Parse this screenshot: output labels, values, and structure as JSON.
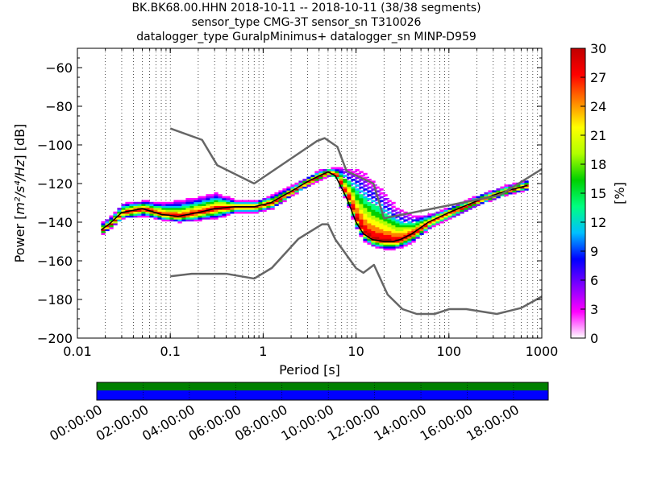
{
  "titles": [
    "BK.BK68.00.HHN   2018-10-11 -- 2018-10-11  (38/38 segments)",
    "sensor_type CMG-3T sensor_sn T310026",
    "datalogger_type GuralpMinimus+ datalogger_sn MINP-D959"
  ],
  "chart_data": {
    "type": "heatmap",
    "xlabel": "Period [s]",
    "ylabel_prefix": "Power [",
    "ylabel_math": "m²/s⁴/Hz",
    "ylabel_suffix": "] [dB]",
    "x_scale": "log",
    "xlim": [
      0.01,
      1000
    ],
    "ylim": [
      -200,
      -50
    ],
    "x_ticks": [
      {
        "value": 0.01,
        "label": "0.01"
      },
      {
        "value": 0.1,
        "label": "0.1"
      },
      {
        "value": 1,
        "label": "1"
      },
      {
        "value": 10,
        "label": "10"
      },
      {
        "value": 100,
        "label": "100"
      },
      {
        "value": 1000,
        "label": "1000"
      }
    ],
    "y_ticks": [
      {
        "value": -200,
        "label": "−200"
      },
      {
        "value": -180,
        "label": "−180"
      },
      {
        "value": -160,
        "label": "−160"
      },
      {
        "value": -140,
        "label": "−140"
      },
      {
        "value": -120,
        "label": "−120"
      },
      {
        "value": -100,
        "label": "−100"
      },
      {
        "value": -80,
        "label": "−80"
      },
      {
        "value": -60,
        "label": "−60"
      }
    ],
    "grid": "dotted vertical lines",
    "colorbar": {
      "label": "[%]",
      "min": 0,
      "max": 30,
      "ticks": [
        "0",
        "3",
        "6",
        "9",
        "12",
        "15",
        "18",
        "21",
        "24",
        "27",
        "30"
      ],
      "colormap": "pqlx",
      "colors": [
        "#ffffff",
        "#ff00ff",
        "#8000ff",
        "#0000ff",
        "#00c0ff",
        "#00ff80",
        "#00d000",
        "#b0ff00",
        "#ffff00",
        "#ff8000",
        "#ff0000",
        "#c00000"
      ]
    },
    "median": {
      "period": [
        0.018,
        0.022,
        0.03,
        0.05,
        0.08,
        0.12,
        0.2,
        0.3,
        0.5,
        0.8,
        1.2,
        2,
        3,
        4,
        5,
        6,
        8,
        10,
        12,
        15,
        20,
        25,
        30,
        40,
        60,
        100,
        200,
        400,
        700
      ],
      "db": [
        -144,
        -141,
        -135,
        -133,
        -136,
        -137,
        -135,
        -133,
        -132,
        -132,
        -130,
        -124,
        -119,
        -116,
        -114,
        -116,
        -128,
        -140,
        -146,
        -149,
        -150,
        -150,
        -149,
        -146,
        -140,
        -135,
        -129,
        -124,
        -121
      ]
    },
    "density": {
      "period": [
        0.018,
        0.022,
        0.03,
        0.05,
        0.08,
        0.12,
        0.2,
        0.3,
        0.5,
        0.8,
        1.2,
        2,
        3,
        4,
        5,
        6,
        8,
        10,
        12,
        15,
        20,
        25,
        30,
        40,
        60,
        100,
        200,
        400,
        700
      ],
      "db_low": [
        -146,
        -143,
        -138,
        -137,
        -139,
        -140,
        -139,
        -138,
        -135,
        -135,
        -133,
        -126,
        -121,
        -118,
        -116,
        -118,
        -132,
        -145,
        -150,
        -153,
        -154,
        -154,
        -153,
        -150,
        -143,
        -138,
        -131,
        -126,
        -123
      ],
      "db_high": [
        -140,
        -137,
        -130,
        -129,
        -130,
        -129,
        -127,
        -125,
        -129,
        -129,
        -126,
        -121,
        -116,
        -113,
        -112,
        -112,
        -113,
        -114,
        -116,
        -120,
        -126,
        -132,
        -135,
        -137,
        -136,
        -132,
        -126,
        -121,
        -118
      ]
    },
    "nhnm": {
      "period": [
        0.1,
        0.22,
        0.32,
        0.8,
        3.8,
        4.6,
        6.3,
        7.9,
        15.4,
        20,
        354.8,
        1000
      ],
      "db": [
        -91.5,
        -97.4,
        -110.5,
        -120,
        -98,
        -96.5,
        -101,
        -113.5,
        -120,
        -138,
        -126,
        -112.5
      ]
    },
    "nlnm": {
      "period": [
        0.1,
        0.17,
        0.4,
        0.8,
        1.24,
        2.4,
        4.3,
        5,
        6,
        10,
        12,
        15.6,
        21.9,
        31.6,
        45,
        70,
        101,
        154,
        328,
        600,
        1000
      ],
      "db": [
        -168,
        -166.7,
        -166.7,
        -169.2,
        -163.7,
        -148.6,
        -141.1,
        -141.1,
        -149,
        -163.8,
        -166.2,
        -162.1,
        -177.5,
        -185,
        -187.5,
        -187.5,
        -185,
        -185,
        -187.5,
        -184.4,
        -178.5
      ]
    }
  },
  "timeline": {
    "labels": [
      "00:00:00",
      "02:00:00",
      "04:00:00",
      "06:00:00",
      "08:00:00",
      "10:00:00",
      "12:00:00",
      "14:00:00",
      "16:00:00",
      "18:00:00"
    ],
    "coverage_color": "#008000",
    "used_color": "#0000ff"
  }
}
